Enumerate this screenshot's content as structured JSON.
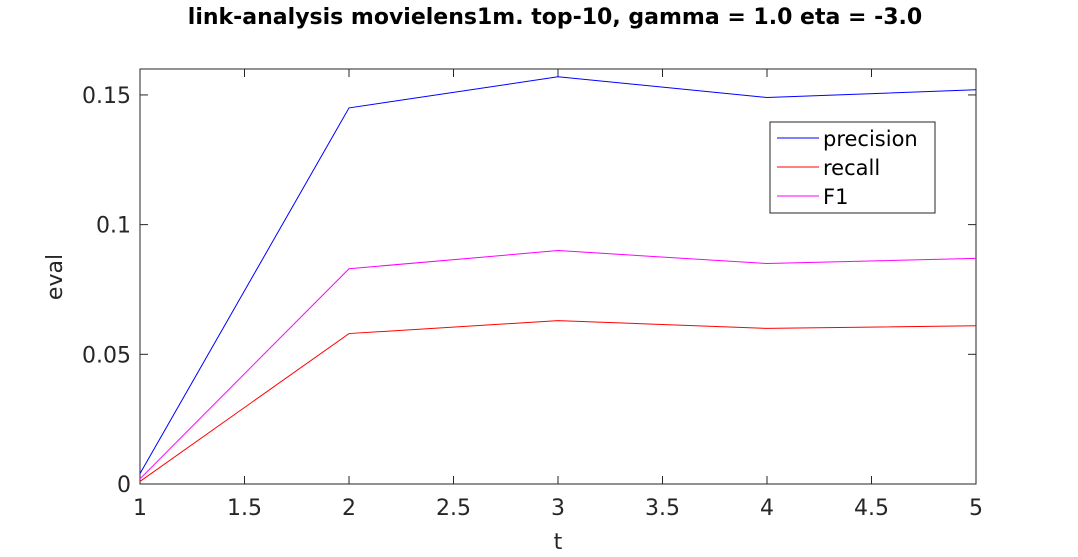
{
  "chart_data": {
    "type": "line",
    "title": "link-analysis movielens1m. top-10, gamma = 1.0 eta = -3.0",
    "xlabel": "t",
    "ylabel": "eval",
    "xlim": [
      1,
      5
    ],
    "ylim": [
      0,
      0.16
    ],
    "x": [
      1,
      2,
      3,
      4,
      5
    ],
    "xticks": [
      "1",
      "1.5",
      "2",
      "2.5",
      "3",
      "3.5",
      "4",
      "4.5",
      "5"
    ],
    "yticks": [
      "0",
      "0.05",
      "0.1",
      "0.15"
    ],
    "legend_position": "top-right",
    "grid": false,
    "series": [
      {
        "name": "precision",
        "color": "#0000ff",
        "values": [
          0.004,
          0.145,
          0.157,
          0.149,
          0.152
        ]
      },
      {
        "name": "recall",
        "color": "#ff0000",
        "values": [
          0.001,
          0.058,
          0.063,
          0.06,
          0.061
        ]
      },
      {
        "name": "F1",
        "color": "#ff00ff",
        "values": [
          0.002,
          0.083,
          0.09,
          0.085,
          0.087
        ]
      }
    ]
  }
}
